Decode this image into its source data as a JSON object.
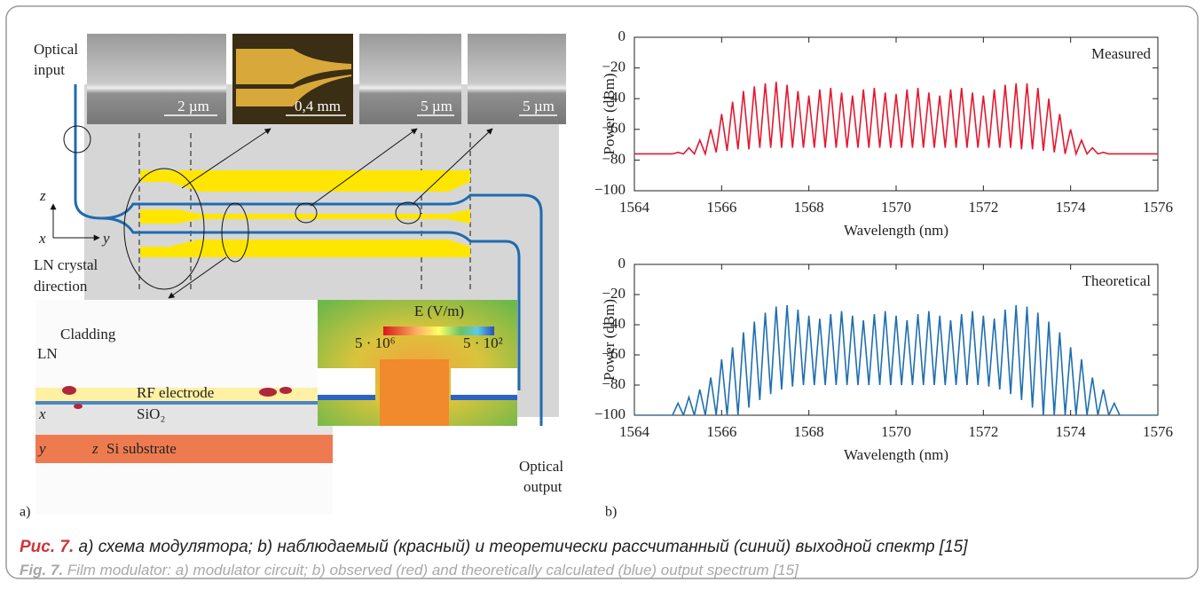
{
  "chart_data": [
    {
      "type": "line",
      "ylabel": "Power (dBm)",
      "xlabel": "Wavelength (nm)",
      "xlim": [
        1564,
        1576
      ],
      "xticks": [
        1564,
        1566,
        1568,
        1570,
        1572,
        1574,
        1576
      ],
      "ylim": [
        -100,
        0
      ],
      "yticks": [
        {
          "value": -100,
          "label": "−100"
        },
        {
          "value": -80,
          "label": "−80"
        },
        {
          "value": -60,
          "label": "−60"
        },
        {
          "value": -40,
          "label": "−40"
        },
        {
          "value": -20,
          "label": "−20"
        },
        0
      ],
      "x": [
        1564,
        1564.875,
        1565,
        1565.125,
        1565.25,
        1565.375,
        1565.5,
        1565.625,
        1565.75,
        1565.875,
        1566,
        1566.125,
        1566.25,
        1566.375,
        1566.5,
        1566.625,
        1566.75,
        1566.875,
        1567,
        1567.125,
        1567.25,
        1567.375,
        1567.5,
        1567.625,
        1567.75,
        1567.875,
        1568,
        1568.125,
        1568.25,
        1568.375,
        1568.5,
        1568.625,
        1568.75,
        1568.875,
        1569,
        1569.125,
        1569.25,
        1569.375,
        1569.5,
        1569.625,
        1569.75,
        1569.875,
        1570,
        1570.125,
        1570.25,
        1570.375,
        1570.5,
        1570.625,
        1570.75,
        1570.875,
        1571,
        1571.125,
        1571.25,
        1571.375,
        1571.5,
        1571.625,
        1571.75,
        1571.875,
        1572,
        1572.125,
        1572.25,
        1572.375,
        1572.5,
        1572.625,
        1572.75,
        1572.875,
        1573,
        1573.125,
        1573.25,
        1573.375,
        1573.5,
        1573.625,
        1573.75,
        1573.875,
        1574,
        1574.125,
        1574.25,
        1574.375,
        1574.5,
        1574.625,
        1574.75,
        1574.875,
        1575,
        1575.125,
        1576
      ],
      "series": [
        {
          "name": "Measured",
          "color": "#e4182f",
          "values": [
            -76,
            -76,
            -75,
            -76,
            -72,
            -76,
            -67,
            -76,
            -60,
            -75,
            -50,
            -74,
            -42,
            -73,
            -35,
            -73,
            -32,
            -72,
            -30,
            -72,
            -29,
            -72,
            -31,
            -72,
            -35,
            -72,
            -38,
            -72,
            -34,
            -72,
            -33,
            -72,
            -36,
            -72,
            -38,
            -72,
            -34,
            -72,
            -33,
            -72,
            -36,
            -72,
            -37,
            -72,
            -34,
            -72,
            -33,
            -72,
            -36,
            -72,
            -38,
            -72,
            -34,
            -72,
            -33,
            -72,
            -36,
            -72,
            -38,
            -72,
            -34,
            -72,
            -31,
            -72,
            -30,
            -73,
            -30,
            -73,
            -33,
            -74,
            -40,
            -75,
            -50,
            -76,
            -60,
            -76,
            -67,
            -76,
            -72,
            -76,
            -75,
            -76,
            -76,
            -76,
            -76
          ]
        }
      ]
    },
    {
      "type": "line",
      "ylabel": "Power (dBm)",
      "xlabel": "Wavelength (nm)",
      "xlim": [
        1564,
        1576
      ],
      "xticks": [
        1564,
        1566,
        1568,
        1570,
        1572,
        1574,
        1576
      ],
      "ylim": [
        -100,
        0
      ],
      "yticks": [
        {
          "value": -100,
          "label": "−100"
        },
        {
          "value": -80,
          "label": "−80"
        },
        {
          "value": -60,
          "label": "−60"
        },
        {
          "value": -40,
          "label": "−40"
        },
        {
          "value": -20,
          "label": "−20"
        },
        0
      ],
      "x": [
        1564,
        1564.875,
        1565,
        1565.125,
        1565.25,
        1565.375,
        1565.5,
        1565.625,
        1565.75,
        1565.875,
        1566,
        1566.125,
        1566.25,
        1566.375,
        1566.5,
        1566.625,
        1566.75,
        1566.875,
        1567,
        1567.125,
        1567.25,
        1567.375,
        1567.5,
        1567.625,
        1567.75,
        1567.875,
        1568,
        1568.125,
        1568.25,
        1568.375,
        1568.5,
        1568.625,
        1568.75,
        1568.875,
        1569,
        1569.125,
        1569.25,
        1569.375,
        1569.5,
        1569.625,
        1569.75,
        1569.875,
        1570,
        1570.125,
        1570.25,
        1570.375,
        1570.5,
        1570.625,
        1570.75,
        1570.875,
        1571,
        1571.125,
        1571.25,
        1571.375,
        1571.5,
        1571.625,
        1571.75,
        1571.875,
        1572,
        1572.125,
        1572.25,
        1572.375,
        1572.5,
        1572.625,
        1572.75,
        1572.875,
        1573,
        1573.125,
        1573.25,
        1573.375,
        1573.5,
        1573.625,
        1573.75,
        1573.875,
        1574,
        1574.125,
        1574.25,
        1574.375,
        1574.5,
        1574.625,
        1574.75,
        1574.875,
        1575,
        1575.125,
        1576
      ],
      "series": [
        {
          "name": "Theoretical",
          "color": "#1f6fb0",
          "values": [
            -100,
            -100,
            -92,
            -100,
            -88,
            -100,
            -83,
            -100,
            -75,
            -100,
            -63,
            -100,
            -55,
            -100,
            -45,
            -95,
            -38,
            -90,
            -32,
            -86,
            -28,
            -83,
            -27,
            -81,
            -30,
            -80,
            -34,
            -80,
            -36,
            -80,
            -33,
            -80,
            -31,
            -80,
            -34,
            -80,
            -37,
            -80,
            -33,
            -80,
            -31,
            -80,
            -34,
            -80,
            -37,
            -80,
            -33,
            -80,
            -31,
            -80,
            -34,
            -80,
            -37,
            -80,
            -33,
            -80,
            -31,
            -80,
            -34,
            -81,
            -36,
            -83,
            -30,
            -86,
            -27,
            -90,
            -28,
            -95,
            -32,
            -100,
            -38,
            -100,
            -45,
            -100,
            -55,
            -100,
            -63,
            -100,
            -75,
            -100,
            -83,
            -100,
            -92,
            -100,
            -100
          ]
        }
      ]
    }
  ],
  "panel_labels": [
    "a)",
    "b)"
  ],
  "schematic": {
    "optical_input": [
      "Optical",
      "input"
    ],
    "scale_bars": [
      "2 µm",
      "0,4 mm",
      "5 µm",
      "5 µm"
    ],
    "axes_top": [
      "z",
      "x",
      "y"
    ],
    "crystal_direction": [
      "LN crystal",
      "direction"
    ],
    "cladding": "Cladding",
    "ln": "LN",
    "rf_electrode": "RF electrode",
    "sio2": "SiO₂",
    "axes_bottom": [
      "x",
      "y",
      "z"
    ],
    "substrate": "Si substrate",
    "field_label": "E (V/m)",
    "field_min": "5 · 10⁶",
    "field_max": "5 · 10²",
    "optical_output": [
      "Optical",
      "output"
    ]
  },
  "caption": {
    "ru_label": "Рис. 7.",
    "ru_text": "а) схема модулятора; b) наблюдаемый (красный) и теоретически рассчитанный (синий) выходной спектр [15]",
    "en_label": "Fig. 7.",
    "en_text": "Film modulator: a) modulator circuit; b) observed (red) and theoretically calculated (blue) output spectrum [15]"
  }
}
